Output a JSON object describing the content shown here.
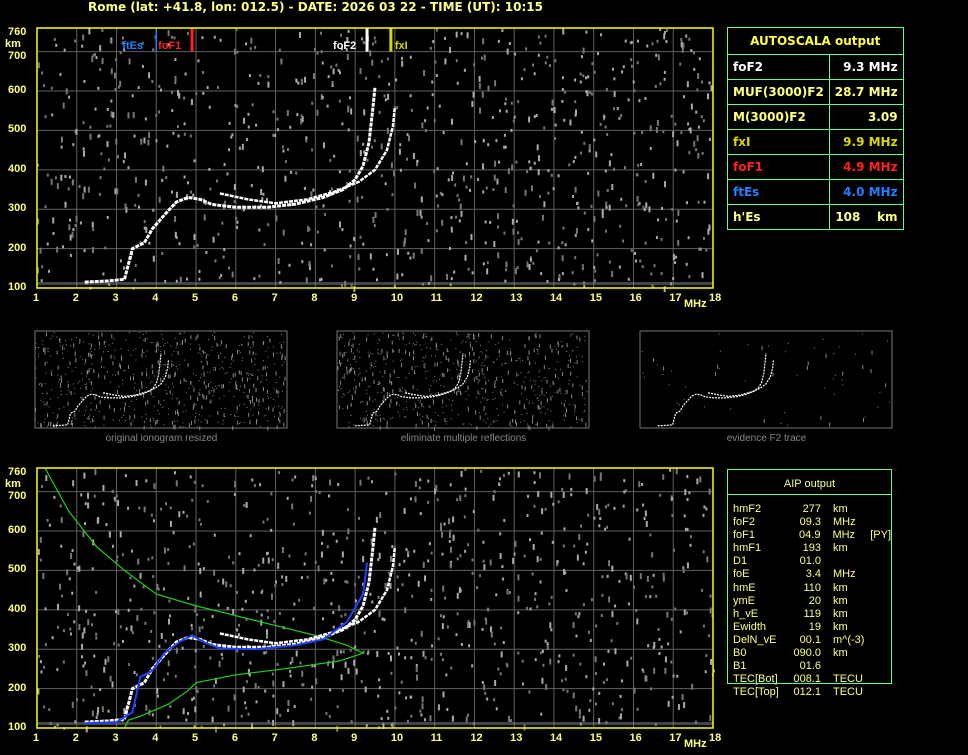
{
  "header": {
    "title": "Rome (lat: +41.8, lon: 012.5) - DATE: 2026 03 22 - TIME (UT): 10:15"
  },
  "colors": {
    "axis": "#ffff00",
    "grid": "#606060",
    "table_border": "#60ff90",
    "fxI": "#d8d800",
    "foF1": "#ff2020",
    "ftEs": "#2080ff",
    "foF2": "#ffffff",
    "model": "#2040ff",
    "profile": "#20d020"
  },
  "autoscala": {
    "title": "AUTOSCALA output",
    "rows": [
      {
        "label": "foF2",
        "value": "9.3 MHz",
        "color": "#ffffff"
      },
      {
        "label": "MUF(3000)F2",
        "value": "28.7 MHz",
        "color": "#ffff80"
      },
      {
        "label": "M(3000)F2",
        "value": "3.09",
        "color": "#ffff80"
      },
      {
        "label": "fxI",
        "value": "9.9 MHz",
        "color": "#d8d800"
      },
      {
        "label": "foF1",
        "value": "4.9 MHz",
        "color": "#ff2020"
      },
      {
        "label": "ftEs",
        "value": "4.0 MHz",
        "color": "#2080ff"
      },
      {
        "label": "h'Es",
        "value": "108    km",
        "color": "#ffff80"
      }
    ]
  },
  "aip": {
    "title": "AIP output",
    "rows": [
      [
        "hmF2",
        "277",
        "km",
        ""
      ],
      [
        "foF2",
        "09.3",
        "MHz",
        ""
      ],
      [
        "foF1",
        "04.9",
        "MHz",
        "[PY]"
      ],
      [
        "hmF1",
        "193",
        "km",
        ""
      ],
      [
        "D1",
        "01.0",
        "",
        ""
      ],
      [
        "foE",
        "3.4",
        "MHz",
        ""
      ],
      [
        "hmE",
        "110",
        "km",
        ""
      ],
      [
        "ymE",
        "20",
        "km",
        ""
      ],
      [
        "h_vE",
        "119",
        "km",
        ""
      ],
      [
        "Ewidth",
        "19",
        "km",
        ""
      ],
      [
        "DelN_vE",
        "00.1",
        "m^(-3)",
        ""
      ],
      [
        "B0",
        "090.0",
        "km",
        ""
      ],
      [
        "B1",
        "01.6",
        "",
        ""
      ],
      [
        "TEC[Bot]",
        "008.1",
        "TECU",
        ""
      ],
      [
        "TEC[Top]",
        "012.1",
        "TECU",
        ""
      ]
    ]
  },
  "thumbnails": [
    {
      "caption": "original ionogram resized"
    },
    {
      "caption": "eliminate multiple reflections"
    },
    {
      "caption": "evidence F2 trace"
    }
  ],
  "chart_data": {
    "type": "scatter",
    "xlabel": "MHz",
    "ylabel": "km",
    "xlim": [
      1,
      18
    ],
    "ylim": [
      100,
      760
    ],
    "x_ticks": [
      1,
      2,
      3,
      4,
      5,
      6,
      7,
      8,
      9,
      10,
      11,
      12,
      13,
      14,
      15,
      16,
      17,
      18
    ],
    "y_ticks": [
      100,
      200,
      300,
      400,
      500,
      600,
      700,
      760
    ],
    "grid": true,
    "markers": [
      {
        "name": "ftEs",
        "freq": 4.0,
        "color": "#2080ff"
      },
      {
        "name": "foF1",
        "freq": 4.9,
        "color": "#ff2020"
      },
      {
        "name": "foF2",
        "freq": 9.3,
        "color": "#ffffff"
      },
      {
        "name": "fxI",
        "freq": 9.9,
        "color": "#d8d800"
      }
    ],
    "o_trace": [
      [
        2.2,
        115
      ],
      [
        2.8,
        118
      ],
      [
        3.2,
        122
      ],
      [
        3.4,
        200
      ],
      [
        3.7,
        215
      ],
      [
        3.9,
        250
      ],
      [
        4.2,
        285
      ],
      [
        4.5,
        318
      ],
      [
        4.8,
        330
      ],
      [
        5.1,
        325
      ],
      [
        5.4,
        312
      ],
      [
        6,
        305
      ],
      [
        6.8,
        305
      ],
      [
        7.5,
        313
      ],
      [
        8.2,
        330
      ],
      [
        8.7,
        350
      ],
      [
        9.0,
        375
      ],
      [
        9.2,
        410
      ],
      [
        9.35,
        470
      ],
      [
        9.45,
        560
      ],
      [
        9.5,
        610
      ]
    ],
    "x_trace": [
      [
        5.6,
        340
      ],
      [
        6.3,
        325
      ],
      [
        7,
        315
      ],
      [
        7.8,
        325
      ],
      [
        8.5,
        345
      ],
      [
        9.1,
        370
      ],
      [
        9.5,
        400
      ],
      [
        9.8,
        450
      ],
      [
        9.95,
        510
      ],
      [
        10.0,
        560
      ]
    ],
    "model_trace": [
      [
        2.2,
        112
      ],
      [
        3,
        115
      ],
      [
        3.4,
        140
      ],
      [
        3.6,
        230
      ],
      [
        3.9,
        245
      ],
      [
        4.2,
        290
      ],
      [
        4.6,
        320
      ],
      [
        4.9,
        335
      ],
      [
        5.2,
        318
      ],
      [
        5.6,
        302
      ],
      [
        6.5,
        300
      ],
      [
        7.5,
        310
      ],
      [
        8.2,
        325
      ],
      [
        8.8,
        370
      ],
      [
        9.2,
        440
      ],
      [
        9.3,
        520
      ]
    ],
    "profile": [
      [
        1.2,
        760
      ],
      [
        1.8,
        650
      ],
      [
        2.5,
        560
      ],
      [
        3.2,
        500
      ],
      [
        4,
        440
      ],
      [
        5,
        410
      ],
      [
        6,
        385
      ],
      [
        7,
        360
      ],
      [
        8,
        335
      ],
      [
        8.8,
        310
      ],
      [
        9.2,
        290
      ],
      [
        8.6,
        270
      ],
      [
        7.2,
        250
      ],
      [
        6,
        235
      ],
      [
        5,
        215
      ],
      [
        4.8,
        195
      ],
      [
        4.3,
        160
      ],
      [
        3.6,
        130
      ],
      [
        3.3,
        120
      ],
      [
        3.2,
        100
      ]
    ]
  }
}
